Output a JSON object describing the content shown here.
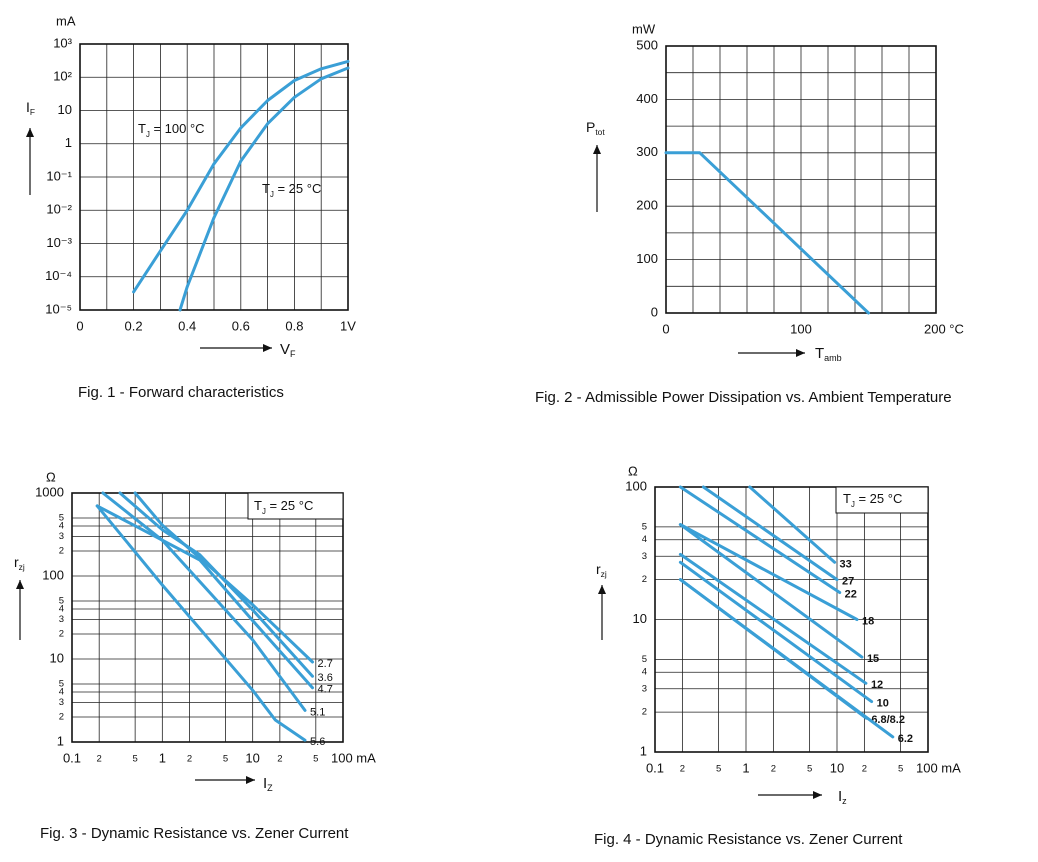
{
  "chart_data": [
    {
      "type": "line",
      "title": "Fig. 1 - Forward characteristics",
      "yunit": "mA",
      "ylabel": {
        "text": "I",
        "sub": "F"
      },
      "xlabel": {
        "text": "V",
        "sub": "F"
      },
      "yscale": "log",
      "xscale": "linear",
      "xlim": [
        0,
        1
      ],
      "ylim": [
        1e-05,
        1000
      ],
      "xticks": [
        0,
        0.2,
        0.4,
        0.6,
        0.8,
        {
          "value": 1,
          "label": "1V"
        }
      ],
      "xminor": [
        0.1,
        0.3,
        0.5,
        0.7,
        0.9
      ],
      "yticks": [
        {
          "value": 1000,
          "label": "10³"
        },
        {
          "value": 100,
          "label": "10²"
        },
        10,
        1,
        {
          "value": 0.1,
          "label": "10⁻¹"
        },
        {
          "value": 0.01,
          "label": "10⁻²"
        },
        {
          "value": 0.001,
          "label": "10⁻³"
        },
        {
          "value": 0.0001,
          "label": "10⁻⁴"
        },
        {
          "value": 1e-05,
          "label": "10⁻⁵"
        }
      ],
      "grid": true,
      "annotations": [
        {
          "text": "T",
          "sub": "J",
          "rest": " = 100 °C"
        },
        {
          "text": "T",
          "sub": "J",
          "rest": " = 25 °C"
        }
      ],
      "series": [
        {
          "color": "#3a9fd6",
          "x": [
            0.2,
            0.3,
            0.4,
            0.5,
            0.6,
            0.7,
            0.8,
            0.9,
            1.0
          ],
          "values": [
            3.5e-05,
            0.0006,
            0.01,
            0.25,
            3,
            20,
            80,
            180,
            300
          ]
        },
        {
          "color": "#3a9fd6",
          "x": [
            0.373,
            0.4,
            0.5,
            0.6,
            0.7,
            0.8,
            0.9,
            1.0
          ],
          "values": [
            1e-05,
            5e-05,
            0.006,
            0.3,
            4,
            25,
            90,
            190
          ]
        }
      ]
    },
    {
      "type": "line",
      "title": "Fig. 2 - Admissible Power Dissipation vs. Ambient Temperature",
      "yunit": "mW",
      "ylabel": {
        "text": "P",
        "sub": "tot"
      },
      "xlabel": {
        "text": "T",
        "sub": "amb"
      },
      "yscale": "linear",
      "xscale": "linear",
      "xlim": [
        0,
        200
      ],
      "ylim": [
        0,
        500
      ],
      "xticks": [
        0,
        100,
        {
          "value": 200,
          "label": "200 °C"
        }
      ],
      "xminor": [
        20,
        40,
        60,
        80,
        120,
        140,
        160,
        180
      ],
      "yticks": [
        0,
        100,
        200,
        300,
        400,
        500
      ],
      "yminor": [
        50,
        150,
        250,
        350,
        450
      ],
      "grid": true,
      "series": [
        {
          "color": "#3a9fd6",
          "x": [
            0,
            25,
            150
          ],
          "values": [
            300,
            300,
            0
          ]
        }
      ]
    },
    {
      "type": "line",
      "title": "Fig. 3 - Dynamic Resistance vs. Zener Current",
      "yunit": "Ω",
      "ylabel": {
        "text": "r",
        "sub": "zj"
      },
      "xlabel": {
        "text": "I",
        "sub": "Z"
      },
      "yscale": "log",
      "xscale": "log",
      "xlim": [
        0.1,
        100
      ],
      "ylim": [
        1,
        1000
      ],
      "xticks": [
        0.1,
        {
          "value": 0.2,
          "label": "2"
        },
        {
          "value": 0.5,
          "label": "5"
        },
        1,
        2,
        5,
        10,
        {
          "value": 20,
          "label": "2"
        },
        {
          "value": 50,
          "label": "5"
        },
        {
          "value": 100,
          "label": "100 mA"
        }
      ],
      "yticks": [
        1,
        2,
        3,
        4,
        5,
        10,
        {
          "value": 20,
          "label": "2"
        },
        {
          "value": 30,
          "label": "3"
        },
        {
          "value": 40,
          "label": "4"
        },
        {
          "value": 50,
          "label": "5"
        },
        100,
        {
          "value": 200,
          "label": "2"
        },
        {
          "value": 300,
          "label": "3"
        },
        {
          "value": 400,
          "label": "4"
        },
        {
          "value": 500,
          "label": "5"
        },
        1000
      ],
      "grid": true,
      "annotations": [
        {
          "text": "T",
          "sub": "J",
          "rest": " = 25 °C"
        }
      ],
      "series": [
        {
          "name": "2.7",
          "color": "#3a9fd6",
          "x": [
            0.5,
            1,
            3.4,
            10,
            46
          ],
          "values": [
            1000,
            410,
            128,
            45,
            9.2
          ]
        },
        {
          "name": "3.6",
          "color": "#3a9fd6",
          "x": [
            0.34,
            1,
            2.6,
            10,
            46
          ],
          "values": [
            1000,
            360,
            180,
            39,
            6.2
          ]
        },
        {
          "name": "4.7",
          "color": "#3a9fd6",
          "x": [
            0.22,
            1,
            2.6,
            10,
            46
          ],
          "values": [
            1000,
            270,
            156,
            29,
            4.5
          ]
        },
        {
          "name": "5.1",
          "color": "#3a9fd6",
          "x": [
            0.19,
            1,
            10,
            38
          ],
          "values": [
            700,
            270,
            17,
            2.4
          ]
        },
        {
          "name": "5.6",
          "color": "#3a9fd6",
          "x": [
            0.19,
            1,
            10,
            17.8,
            38
          ],
          "values": [
            700,
            78,
            4.2,
            1.84,
            1.05
          ]
        }
      ]
    },
    {
      "type": "line",
      "title": "Fig. 4 - Dynamic Resistance vs. Zener Current",
      "yunit": "Ω",
      "ylabel": {
        "text": "r",
        "sub": "zj"
      },
      "xlabel": {
        "text": "I",
        "sub": "z"
      },
      "yscale": "log",
      "xscale": "log",
      "xlim": [
        0.1,
        100
      ],
      "ylim": [
        1,
        100
      ],
      "xticks": [
        0.1,
        {
          "value": 0.2,
          "label": "2"
        },
        {
          "value": 0.5,
          "label": "5"
        },
        1,
        2,
        5,
        10,
        {
          "value": 20,
          "label": "2"
        },
        {
          "value": 50,
          "label": "5"
        },
        {
          "value": 100,
          "label": "100 mA"
        }
      ],
      "yticks": [
        1,
        2,
        3,
        4,
        5,
        10,
        {
          "value": 20,
          "label": "2"
        },
        {
          "value": 30,
          "label": "3"
        },
        {
          "value": 40,
          "label": "4"
        },
        {
          "value": 50,
          "label": "5"
        },
        100
      ],
      "grid": true,
      "annotations": [
        {
          "text": "T",
          "sub": "J",
          "rest": " = 25 °C"
        }
      ],
      "series": [
        {
          "name": "33",
          "color": "#3a9fd6",
          "x": [
            1.1,
            9.4
          ],
          "values": [
            100,
            27
          ]
        },
        {
          "name": "27",
          "color": "#3a9fd6",
          "x": [
            0.34,
            10
          ],
          "values": [
            100,
            20
          ]
        },
        {
          "name": "22",
          "color": "#3a9fd6",
          "x": [
            0.19,
            10.7
          ],
          "values": [
            100,
            16
          ]
        },
        {
          "name": "18",
          "color": "#3a9fd6",
          "x": [
            0.19,
            16.6
          ],
          "values": [
            52,
            10
          ]
        },
        {
          "name": "15",
          "color": "#3a9fd6",
          "x": [
            0.19,
            18.8
          ],
          "values": [
            52,
            5.2
          ]
        },
        {
          "name": "12",
          "color": "#3a9fd6",
          "x": [
            0.19,
            20.8
          ],
          "values": [
            31,
            3.3
          ]
        },
        {
          "name": "10",
          "color": "#3a9fd6",
          "x": [
            0.19,
            24
          ],
          "values": [
            27,
            2.4
          ]
        },
        {
          "name": "6.8/8.2",
          "color": "#3a9fd6",
          "x": [
            0.19,
            21
          ],
          "values": [
            20,
            1.8
          ]
        },
        {
          "name": "6.2",
          "color": "#3a9fd6",
          "x": [
            0.19,
            41
          ],
          "values": [
            20,
            1.3
          ]
        }
      ]
    }
  ]
}
